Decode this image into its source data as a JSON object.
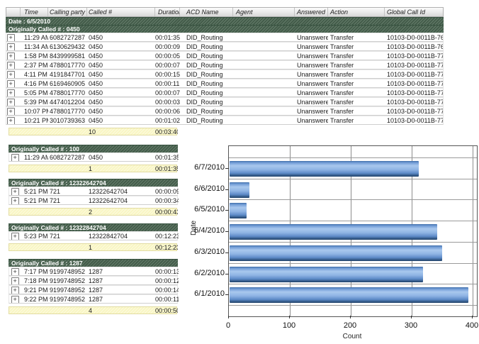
{
  "table": {
    "columns": [
      "Time",
      "Calling party #",
      "Called #",
      "Duration",
      "ACD Name",
      "Agent",
      "Answered",
      "Action",
      "Global Call Id"
    ],
    "date_header": "Date : 6/5/2010",
    "group_header": "Originally Called # : 0450",
    "rows": [
      {
        "time": "11:29 AM",
        "calling": "6082727287",
        "called": "0450",
        "duration": "00:01:35",
        "acd": "DID_Routing",
        "agent": "",
        "answered": "Unanswered",
        "action": "Transfer",
        "gcid": "10103-D0-0011B-768"
      },
      {
        "time": "11:34 AM",
        "calling": "6130629432",
        "called": "0450",
        "duration": "00:00:09",
        "acd": "DID_Routing",
        "agent": "",
        "answered": "Unanswered",
        "action": "Transfer",
        "gcid": "10103-D0-0011B-76F"
      },
      {
        "time": "1:58 PM",
        "calling": "8439999581",
        "called": "0450",
        "duration": "00:00:05",
        "acd": "DID_Routing",
        "agent": "",
        "answered": "Unanswered",
        "action": "Transfer",
        "gcid": "10103-D0-0011B-770"
      },
      {
        "time": "2:37 PM",
        "calling": "4788017770",
        "called": "0450",
        "duration": "00:00:07",
        "acd": "DID_Routing",
        "agent": "",
        "answered": "Unanswered",
        "action": "Transfer",
        "gcid": "10103-D0-0011B-771"
      },
      {
        "time": "4:11 PM",
        "calling": "4191847701",
        "called": "0450",
        "duration": "00:00:15",
        "acd": "DID_Routing",
        "agent": "",
        "answered": "Unanswered",
        "action": "Transfer",
        "gcid": "10103-D0-0011B-772"
      },
      {
        "time": "4:16 PM",
        "calling": "6169460905",
        "called": "0450",
        "duration": "00:00:11",
        "acd": "DID_Routing",
        "agent": "",
        "answered": "Unanswered",
        "action": "Transfer",
        "gcid": "10103-D0-0011B-773"
      },
      {
        "time": "5:05 PM",
        "calling": "4788017770",
        "called": "0450",
        "duration": "00:00:07",
        "acd": "DID_Routing",
        "agent": "",
        "answered": "Unanswered",
        "action": "Transfer",
        "gcid": "10103-D0-0011B-774"
      },
      {
        "time": "5:39 PM",
        "calling": "4474012204",
        "called": "0450",
        "duration": "00:00:03",
        "acd": "DID_Routing",
        "agent": "",
        "answered": "Unanswered",
        "action": "Transfer",
        "gcid": "10103-D0-0011B-778"
      },
      {
        "time": "10:07 PM",
        "calling": "4788017770",
        "called": "0450",
        "duration": "00:00:06",
        "acd": "DID_Routing",
        "agent": "",
        "answered": "Unanswered",
        "action": "Transfer",
        "gcid": "10103-D0-0011B-77E"
      },
      {
        "time": "10:21 PM",
        "calling": "3010739363",
        "called": "0450",
        "duration": "00:01:02",
        "acd": "DID_Routing",
        "agent": "",
        "answered": "Unanswered",
        "action": "Transfer",
        "gcid": "10103-D0-0011B-77F"
      }
    ],
    "summary": {
      "count": "10",
      "duration": "00:03:40"
    }
  },
  "sections": [
    {
      "header": "Originally Called # : 100",
      "rows": [
        {
          "time": "11:29 AM",
          "calling": "6082727287",
          "called": "0450",
          "duration": "00:01:35"
        }
      ],
      "summary": {
        "count": "1",
        "duration": "00:01:35"
      }
    },
    {
      "header": "Originally Called # : 12322642704",
      "rows": [
        {
          "time": "5:21 PM",
          "calling": "721",
          "called": "12322642704",
          "duration": "00:00:09"
        },
        {
          "time": "5:21 PM",
          "calling": "721",
          "called": "12322642704",
          "duration": "00:00:34"
        }
      ],
      "summary": {
        "count": "2",
        "duration": "00:00:43"
      }
    },
    {
      "header": "Originally Called # : 12322842704",
      "rows": [
        {
          "time": "5:23 PM",
          "calling": "721",
          "called": "12322842704",
          "duration": "00:12:23"
        }
      ],
      "summary": {
        "count": "1",
        "duration": "00:12:23"
      }
    },
    {
      "header": "Originally Called # : 1287",
      "rows": [
        {
          "time": "7:17 PM",
          "calling": "9199748952",
          "called": "1287",
          "duration": "00:00:13"
        },
        {
          "time": "7:18 PM",
          "calling": "9199748952",
          "called": "1287",
          "duration": "00:00:12"
        },
        {
          "time": "9:21 PM",
          "calling": "9199748952",
          "called": "1287",
          "duration": "00:00:14"
        },
        {
          "time": "9:22 PM",
          "calling": "9199748952",
          "called": "1287",
          "duration": "00:00:11"
        }
      ],
      "summary": {
        "count": "4",
        "duration": "00:00:50"
      }
    }
  ],
  "chart_data": {
    "type": "bar",
    "orientation": "horizontal",
    "categories": [
      "6/7/2010",
      "6/6/2010",
      "6/5/2010",
      "6/4/2010",
      "6/3/2010",
      "6/2/2010",
      "6/1/2010"
    ],
    "values": [
      310,
      33,
      28,
      341,
      349,
      318,
      392
    ],
    "title": "",
    "xlabel": "Count",
    "ylabel": "Date",
    "xlim": [
      0,
      400
    ],
    "xticks": [
      0,
      100,
      200,
      300,
      400
    ],
    "grid": true,
    "legend": "none",
    "bar_color": "#5b8cc8"
  },
  "colors": {
    "group_header_green": "#4b6752",
    "summary_yellow": "#f9f6c4",
    "bar_blue": "#5b8cc8",
    "grid_gray": "#9a9a9a"
  },
  "icons": {
    "expand": "+"
  }
}
